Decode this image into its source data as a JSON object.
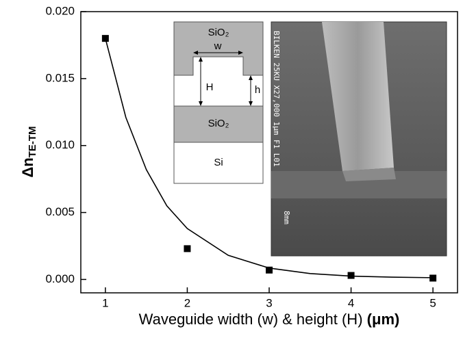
{
  "chart_data": {
    "type": "scatter",
    "xlabel": "Waveguide width (w) & height (H)",
    "xlabel_unit": "(μm)",
    "ylabel": "Δn",
    "ylabel_subscript": "TE-TM",
    "xlim": [
      0.7,
      5.3
    ],
    "ylim": [
      -0.001,
      0.02
    ],
    "xticks": [
      1,
      2,
      3,
      4,
      5
    ],
    "yticks": [
      {
        "value": 0,
        "label": "0.000"
      },
      {
        "value": 0.005,
        "label": "0.005"
      },
      {
        "value": 0.01,
        "label": "0.010"
      },
      {
        "value": 0.015,
        "label": "0.015"
      },
      {
        "value": 0.02,
        "label": "0.020"
      }
    ],
    "series": [
      {
        "mode": "markers",
        "color": "#000000",
        "x": [
          1,
          2,
          3,
          4,
          5
        ],
        "values": [
          0.018,
          0.0023,
          0.0007,
          0.0003,
          0.0001
        ]
      },
      {
        "mode": "line",
        "color": "#000000",
        "x": [
          1,
          1.25,
          1.5,
          1.75,
          2,
          2.5,
          3,
          3.5,
          4,
          4.5,
          5
        ],
        "values": [
          0.018,
          0.0121,
          0.0082,
          0.0055,
          0.0038,
          0.0018,
          0.00085,
          0.00044,
          0.00025,
          0.00017,
          0.00013
        ]
      }
    ],
    "annotations": {
      "upper_cladding": "SiO₂",
      "width": "w",
      "height_total": "H",
      "height_rib": "h",
      "lower_cladding": "SiO₂",
      "substrate": "Si",
      "sem_info": "BILKEN  25KU  X27,000  1μm  F1  L01",
      "sem_distance": "8mm"
    }
  }
}
